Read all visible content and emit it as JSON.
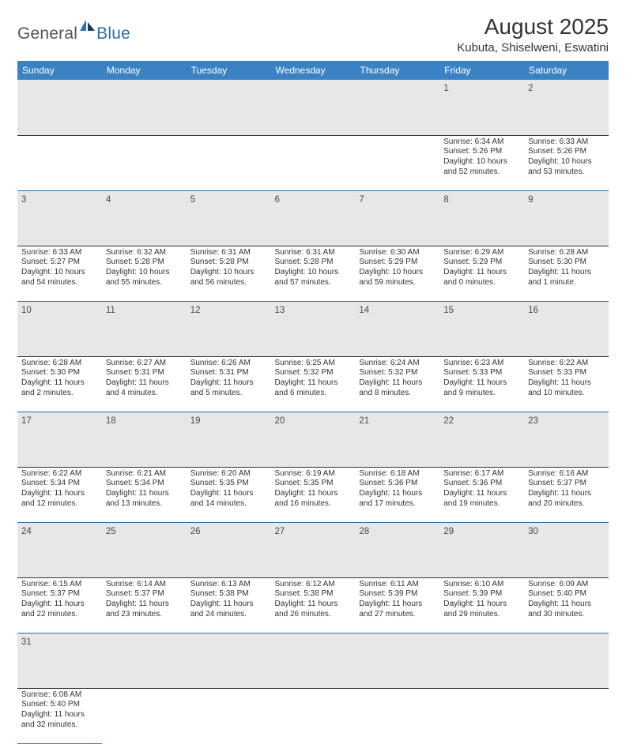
{
  "logo": {
    "general": "General",
    "blue": "Blue"
  },
  "colors": {
    "header_bg": "#3a82c4",
    "header_text": "#ffffff",
    "daynum_bg": "#e7e7e7",
    "row_divider": "#2e6da4",
    "text": "#333333"
  },
  "title": "August 2025",
  "location": "Kubuta, Shiselweni, Eswatini",
  "fonts": {
    "title_size": 28,
    "location_size": 15,
    "header_size": 12,
    "cell_size": 10,
    "daynum_size": 11.5
  },
  "weekdays": [
    "Sunday",
    "Monday",
    "Tuesday",
    "Wednesday",
    "Thursday",
    "Friday",
    "Saturday"
  ],
  "weeks": [
    [
      null,
      null,
      null,
      null,
      null,
      {
        "n": "1",
        "sr": "Sunrise: 6:34 AM",
        "ss": "Sunset: 5:26 PM",
        "d1": "Daylight: 10 hours",
        "d2": "and 52 minutes."
      },
      {
        "n": "2",
        "sr": "Sunrise: 6:33 AM",
        "ss": "Sunset: 5:26 PM",
        "d1": "Daylight: 10 hours",
        "d2": "and 53 minutes."
      }
    ],
    [
      {
        "n": "3",
        "sr": "Sunrise: 6:33 AM",
        "ss": "Sunset: 5:27 PM",
        "d1": "Daylight: 10 hours",
        "d2": "and 54 minutes."
      },
      {
        "n": "4",
        "sr": "Sunrise: 6:32 AM",
        "ss": "Sunset: 5:28 PM",
        "d1": "Daylight: 10 hours",
        "d2": "and 55 minutes."
      },
      {
        "n": "5",
        "sr": "Sunrise: 6:31 AM",
        "ss": "Sunset: 5:28 PM",
        "d1": "Daylight: 10 hours",
        "d2": "and 56 minutes."
      },
      {
        "n": "6",
        "sr": "Sunrise: 6:31 AM",
        "ss": "Sunset: 5:28 PM",
        "d1": "Daylight: 10 hours",
        "d2": "and 57 minutes."
      },
      {
        "n": "7",
        "sr": "Sunrise: 6:30 AM",
        "ss": "Sunset: 5:29 PM",
        "d1": "Daylight: 10 hours",
        "d2": "and 59 minutes."
      },
      {
        "n": "8",
        "sr": "Sunrise: 6:29 AM",
        "ss": "Sunset: 5:29 PM",
        "d1": "Daylight: 11 hours",
        "d2": "and 0 minutes."
      },
      {
        "n": "9",
        "sr": "Sunrise: 6:28 AM",
        "ss": "Sunset: 5:30 PM",
        "d1": "Daylight: 11 hours",
        "d2": "and 1 minute."
      }
    ],
    [
      {
        "n": "10",
        "sr": "Sunrise: 6:28 AM",
        "ss": "Sunset: 5:30 PM",
        "d1": "Daylight: 11 hours",
        "d2": "and 2 minutes."
      },
      {
        "n": "11",
        "sr": "Sunrise: 6:27 AM",
        "ss": "Sunset: 5:31 PM",
        "d1": "Daylight: 11 hours",
        "d2": "and 4 minutes."
      },
      {
        "n": "12",
        "sr": "Sunrise: 6:26 AM",
        "ss": "Sunset: 5:31 PM",
        "d1": "Daylight: 11 hours",
        "d2": "and 5 minutes."
      },
      {
        "n": "13",
        "sr": "Sunrise: 6:25 AM",
        "ss": "Sunset: 5:32 PM",
        "d1": "Daylight: 11 hours",
        "d2": "and 6 minutes."
      },
      {
        "n": "14",
        "sr": "Sunrise: 6:24 AM",
        "ss": "Sunset: 5:32 PM",
        "d1": "Daylight: 11 hours",
        "d2": "and 8 minutes."
      },
      {
        "n": "15",
        "sr": "Sunrise: 6:23 AM",
        "ss": "Sunset: 5:33 PM",
        "d1": "Daylight: 11 hours",
        "d2": "and 9 minutes."
      },
      {
        "n": "16",
        "sr": "Sunrise: 6:22 AM",
        "ss": "Sunset: 5:33 PM",
        "d1": "Daylight: 11 hours",
        "d2": "and 10 minutes."
      }
    ],
    [
      {
        "n": "17",
        "sr": "Sunrise: 6:22 AM",
        "ss": "Sunset: 5:34 PM",
        "d1": "Daylight: 11 hours",
        "d2": "and 12 minutes."
      },
      {
        "n": "18",
        "sr": "Sunrise: 6:21 AM",
        "ss": "Sunset: 5:34 PM",
        "d1": "Daylight: 11 hours",
        "d2": "and 13 minutes."
      },
      {
        "n": "19",
        "sr": "Sunrise: 6:20 AM",
        "ss": "Sunset: 5:35 PM",
        "d1": "Daylight: 11 hours",
        "d2": "and 14 minutes."
      },
      {
        "n": "20",
        "sr": "Sunrise: 6:19 AM",
        "ss": "Sunset: 5:35 PM",
        "d1": "Daylight: 11 hours",
        "d2": "and 16 minutes."
      },
      {
        "n": "21",
        "sr": "Sunrise: 6:18 AM",
        "ss": "Sunset: 5:36 PM",
        "d1": "Daylight: 11 hours",
        "d2": "and 17 minutes."
      },
      {
        "n": "22",
        "sr": "Sunrise: 6:17 AM",
        "ss": "Sunset: 5:36 PM",
        "d1": "Daylight: 11 hours",
        "d2": "and 19 minutes."
      },
      {
        "n": "23",
        "sr": "Sunrise: 6:16 AM",
        "ss": "Sunset: 5:37 PM",
        "d1": "Daylight: 11 hours",
        "d2": "and 20 minutes."
      }
    ],
    [
      {
        "n": "24",
        "sr": "Sunrise: 6:15 AM",
        "ss": "Sunset: 5:37 PM",
        "d1": "Daylight: 11 hours",
        "d2": "and 22 minutes."
      },
      {
        "n": "25",
        "sr": "Sunrise: 6:14 AM",
        "ss": "Sunset: 5:37 PM",
        "d1": "Daylight: 11 hours",
        "d2": "and 23 minutes."
      },
      {
        "n": "26",
        "sr": "Sunrise: 6:13 AM",
        "ss": "Sunset: 5:38 PM",
        "d1": "Daylight: 11 hours",
        "d2": "and 24 minutes."
      },
      {
        "n": "27",
        "sr": "Sunrise: 6:12 AM",
        "ss": "Sunset: 5:38 PM",
        "d1": "Daylight: 11 hours",
        "d2": "and 26 minutes."
      },
      {
        "n": "28",
        "sr": "Sunrise: 6:11 AM",
        "ss": "Sunset: 5:39 PM",
        "d1": "Daylight: 11 hours",
        "d2": "and 27 minutes."
      },
      {
        "n": "29",
        "sr": "Sunrise: 6:10 AM",
        "ss": "Sunset: 5:39 PM",
        "d1": "Daylight: 11 hours",
        "d2": "and 29 minutes."
      },
      {
        "n": "30",
        "sr": "Sunrise: 6:09 AM",
        "ss": "Sunset: 5:40 PM",
        "d1": "Daylight: 11 hours",
        "d2": "and 30 minutes."
      }
    ],
    [
      {
        "n": "31",
        "sr": "Sunrise: 6:08 AM",
        "ss": "Sunset: 5:40 PM",
        "d1": "Daylight: 11 hours",
        "d2": "and 32 minutes."
      },
      null,
      null,
      null,
      null,
      null,
      null
    ]
  ]
}
